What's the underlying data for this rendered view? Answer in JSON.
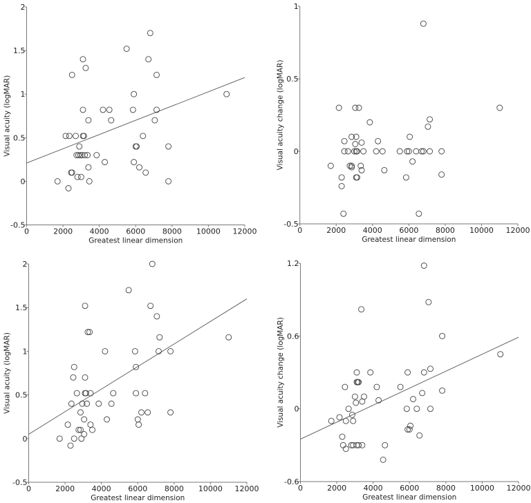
{
  "chart_data": [
    {
      "type": "scatter",
      "title": "",
      "xlabel": "Greatest linear dimension",
      "ylabel": "Visual acuity (logMAR)",
      "xlim": [
        0,
        12000
      ],
      "ylim": [
        -0.5,
        2
      ],
      "xticks": [
        "0",
        "2000",
        "4000",
        "6000",
        "8000",
        "10000",
        "12000"
      ],
      "xtick_values": [
        0,
        2000,
        4000,
        6000,
        8000,
        10000,
        12000
      ],
      "yticks": [
        "2",
        "1.5",
        "1",
        "0.5",
        "0",
        "-0.5"
      ],
      "ytick_values": [
        2,
        1.5,
        1,
        0.5,
        0,
        -0.5
      ],
      "grid": false,
      "regression_line": [
        [
          0,
          0.21
        ],
        [
          12000,
          1.19
        ]
      ],
      "points": [
        [
          1700,
          0
        ],
        [
          2300,
          -0.08
        ],
        [
          2150,
          0.52
        ],
        [
          2350,
          0.52
        ],
        [
          2700,
          0.52
        ],
        [
          2450,
          0.1
        ],
        [
          2500,
          0.1
        ],
        [
          2500,
          1.22
        ],
        [
          2800,
          0.05
        ],
        [
          3000,
          0.05
        ],
        [
          2900,
          0.4
        ],
        [
          2750,
          0.3
        ],
        [
          2850,
          0.3
        ],
        [
          2950,
          0.3
        ],
        [
          3050,
          0.3
        ],
        [
          3200,
          0.3
        ],
        [
          3350,
          0.3
        ],
        [
          3100,
          0.52
        ],
        [
          3150,
          0.52
        ],
        [
          3100,
          0.82
        ],
        [
          3100,
          1.4
        ],
        [
          3250,
          1.3
        ],
        [
          3400,
          0.7
        ],
        [
          3400,
          0.16
        ],
        [
          3450,
          0
        ],
        [
          3850,
          0.3
        ],
        [
          4300,
          0.22
        ],
        [
          4200,
          0.82
        ],
        [
          4550,
          0.82
        ],
        [
          4650,
          0.7
        ],
        [
          5500,
          1.52
        ],
        [
          5850,
          0.82
        ],
        [
          5900,
          1.0
        ],
        [
          5900,
          0.22
        ],
        [
          6000,
          0.4
        ],
        [
          6050,
          0.4
        ],
        [
          6200,
          0.16
        ],
        [
          6400,
          0.52
        ],
        [
          6550,
          0.1
        ],
        [
          6700,
          1.4
        ],
        [
          6800,
          1.7
        ],
        [
          7050,
          0.7
        ],
        [
          7150,
          1.22
        ],
        [
          7150,
          0.82
        ],
        [
          7800,
          0.4
        ],
        [
          7800,
          0
        ],
        [
          11000,
          1.0
        ]
      ]
    },
    {
      "type": "scatter",
      "title": "",
      "xlabel": "Greatest linear dimension",
      "ylabel": "Visual acuity change (logMAR)",
      "xlim": [
        0,
        12000
      ],
      "ylim": [
        -0.5,
        1
      ],
      "xticks": [
        "0",
        "2000",
        "4000",
        "6000",
        "8000",
        "10000",
        "12000"
      ],
      "xtick_values": [
        0,
        2000,
        4000,
        6000,
        8000,
        10000,
        12000
      ],
      "yticks": [
        "1",
        "0.5",
        "0",
        "-0.5"
      ],
      "ytick_values": [
        1,
        0.5,
        0,
        -0.5
      ],
      "grid": false,
      "regression_line": null,
      "points": [
        [
          1700,
          -0.1
        ],
        [
          2150,
          0.3
        ],
        [
          2300,
          -0.18
        ],
        [
          2300,
          -0.24
        ],
        [
          2400,
          -0.43
        ],
        [
          2450,
          0.07
        ],
        [
          2450,
          0
        ],
        [
          2650,
          0
        ],
        [
          2750,
          -0.1
        ],
        [
          2850,
          -0.1
        ],
        [
          2850,
          -0.11
        ],
        [
          2850,
          0.1
        ],
        [
          3000,
          0
        ],
        [
          3050,
          0.05
        ],
        [
          3050,
          0.3
        ],
        [
          3100,
          0
        ],
        [
          3100,
          0.1
        ],
        [
          3150,
          0
        ],
        [
          3100,
          -0.18
        ],
        [
          3150,
          -0.18
        ],
        [
          3250,
          0.3
        ],
        [
          3350,
          -0.1
        ],
        [
          3400,
          0.06
        ],
        [
          3400,
          -0.13
        ],
        [
          3500,
          0
        ],
        [
          3850,
          0.2
        ],
        [
          4200,
          0
        ],
        [
          4300,
          0.07
        ],
        [
          4550,
          0
        ],
        [
          4650,
          -0.13
        ],
        [
          5500,
          0
        ],
        [
          5850,
          -0.18
        ],
        [
          5900,
          0
        ],
        [
          6000,
          0
        ],
        [
          6050,
          0.1
        ],
        [
          6200,
          -0.07
        ],
        [
          6400,
          0
        ],
        [
          6550,
          -0.43
        ],
        [
          6700,
          0
        ],
        [
          6800,
          0
        ],
        [
          6800,
          0.88
        ],
        [
          7050,
          0.17
        ],
        [
          7150,
          0.22
        ],
        [
          7150,
          0
        ],
        [
          7800,
          0
        ],
        [
          7800,
          -0.16
        ],
        [
          11000,
          0.3
        ]
      ]
    },
    {
      "type": "scatter",
      "title": "",
      "xlabel": "Greatest linear dimension",
      "ylabel": "Visual acuity (logMAR)",
      "xlim": [
        0,
        12000
      ],
      "ylim": [
        -0.5,
        2
      ],
      "xticks": [
        "0",
        "2000",
        "4000",
        "6000",
        "8000",
        "10000",
        "12000"
      ],
      "xtick_values": [
        0,
        2000,
        4000,
        6000,
        8000,
        10000,
        12000
      ],
      "yticks": [
        "2",
        "1.5",
        "1",
        "0.5",
        "0",
        "-0.5"
      ],
      "ytick_values": [
        2,
        1.5,
        1,
        0.5,
        0,
        -0.5
      ],
      "grid": false,
      "regression_line": [
        [
          0,
          0.05
        ],
        [
          12000,
          1.6
        ]
      ],
      "points": [
        [
          1700,
          0
        ],
        [
          2150,
          0.16
        ],
        [
          2300,
          -0.08
        ],
        [
          2350,
          0.4
        ],
        [
          2450,
          0.7
        ],
        [
          2500,
          0.82
        ],
        [
          2500,
          0
        ],
        [
          2650,
          0.52
        ],
        [
          2750,
          0.1
        ],
        [
          2850,
          0.1
        ],
        [
          2850,
          0.3
        ],
        [
          2900,
          0
        ],
        [
          2950,
          0.4
        ],
        [
          3050,
          0.05
        ],
        [
          3050,
          0.22
        ],
        [
          3100,
          0.52
        ],
        [
          3100,
          0.7
        ],
        [
          3100,
          1.52
        ],
        [
          3150,
          0.52
        ],
        [
          3200,
          0.4
        ],
        [
          3250,
          1.22
        ],
        [
          3350,
          1.22
        ],
        [
          3400,
          0.52
        ],
        [
          3400,
          0.16
        ],
        [
          3500,
          0.1
        ],
        [
          3850,
          0.4
        ],
        [
          4200,
          1.0
        ],
        [
          4300,
          0.22
        ],
        [
          4550,
          0.4
        ],
        [
          4650,
          0.52
        ],
        [
          5500,
          1.7
        ],
        [
          5850,
          1.0
        ],
        [
          5900,
          0.82
        ],
        [
          5900,
          0.52
        ],
        [
          6000,
          0.22
        ],
        [
          6050,
          0.16
        ],
        [
          6200,
          0.3
        ],
        [
          6400,
          0.52
        ],
        [
          6550,
          0.3
        ],
        [
          6700,
          1.52
        ],
        [
          6800,
          2.0
        ],
        [
          7050,
          1.4
        ],
        [
          7150,
          1.0
        ],
        [
          7200,
          1.16
        ],
        [
          7800,
          1.0
        ],
        [
          7800,
          0.3
        ],
        [
          11000,
          1.16
        ]
      ]
    },
    {
      "type": "scatter",
      "title": "",
      "xlabel": "Greatest linear dimension",
      "ylabel": "Visual acuity change (logMAR)",
      "xlim": [
        0,
        12000
      ],
      "ylim": [
        -0.6,
        1.2
      ],
      "xticks": [
        "0",
        "2000",
        "4000",
        "6000",
        "8000",
        "10000",
        "12000"
      ],
      "xtick_values": [
        0,
        2000,
        4000,
        6000,
        8000,
        10000,
        12000
      ],
      "yticks": [
        "1.2",
        "0.6",
        "0",
        "-0.6"
      ],
      "ytick_values": [
        1.2,
        0.6,
        0,
        -0.6
      ],
      "grid": false,
      "regression_line": [
        [
          0,
          -0.25
        ],
        [
          12000,
          0.59
        ]
      ],
      "points": [
        [
          1700,
          -0.1
        ],
        [
          2150,
          -0.07
        ],
        [
          2300,
          -0.23
        ],
        [
          2350,
          -0.3
        ],
        [
          2450,
          0.18
        ],
        [
          2500,
          -0.1
        ],
        [
          2500,
          -0.33
        ],
        [
          2650,
          0
        ],
        [
          2800,
          -0.3
        ],
        [
          2850,
          -0.05
        ],
        [
          2900,
          -0.1
        ],
        [
          2900,
          -0.3
        ],
        [
          3000,
          0.1
        ],
        [
          3050,
          0.05
        ],
        [
          3100,
          0.3
        ],
        [
          3100,
          0.22
        ],
        [
          3150,
          0.22
        ],
        [
          3200,
          0.22
        ],
        [
          3100,
          -0.3
        ],
        [
          3200,
          -0.3
        ],
        [
          3350,
          0.82
        ],
        [
          3400,
          0.06
        ],
        [
          3400,
          -0.3
        ],
        [
          3500,
          0.1
        ],
        [
          3850,
          0.3
        ],
        [
          4200,
          0.18
        ],
        [
          4300,
          0.07
        ],
        [
          4550,
          -0.42
        ],
        [
          4650,
          -0.3
        ],
        [
          5500,
          0.18
        ],
        [
          5850,
          0
        ],
        [
          5900,
          0.3
        ],
        [
          5900,
          -0.17
        ],
        [
          6000,
          -0.17
        ],
        [
          6050,
          -0.14
        ],
        [
          6200,
          0.08
        ],
        [
          6400,
          0
        ],
        [
          6550,
          -0.22
        ],
        [
          6700,
          0.13
        ],
        [
          6800,
          0.3
        ],
        [
          6800,
          1.18
        ],
        [
          7050,
          0.88
        ],
        [
          7150,
          0.33
        ],
        [
          7150,
          0
        ],
        [
          7800,
          0.6
        ],
        [
          7800,
          0.15
        ],
        [
          11000,
          0.45
        ]
      ]
    }
  ],
  "style": {
    "axis_color": "#777777",
    "marker_color": "#444444",
    "line_color": "#555555"
  }
}
